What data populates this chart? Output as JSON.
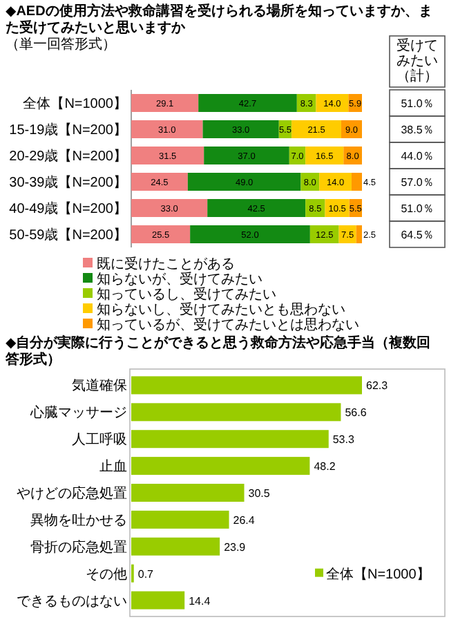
{
  "chart_data": [
    {
      "type": "bar",
      "orientation": "horizontal",
      "stacked": true,
      "title": "◆AEDの使用方法や救命講習を受けられる場所を知っていますか、また受けてみたいと思いますか",
      "subtitle": "（単一回答形式）",
      "categories": [
        "全体【N=1000】",
        "15-19歳【N=200】",
        "20-29歳【N=200】",
        "30-39歳【N=200】",
        "40-49歳【N=200】",
        "50-59歳【N=200】"
      ],
      "series": [
        {
          "name": "既に受けたことがある",
          "color": "#f08080",
          "values": [
            29.1,
            31.0,
            31.5,
            24.5,
            33.0,
            25.5
          ],
          "value_labels": [
            "29.1",
            "31.0",
            "31.5",
            "24.5",
            "33.0",
            "25.5"
          ]
        },
        {
          "name": "知らないが、受けてみたい",
          "color": "#138a13",
          "values": [
            42.7,
            33.0,
            37.0,
            49.0,
            42.5,
            52.0
          ],
          "value_labels": [
            "42.7",
            "33.0",
            "37.0",
            "49.0",
            "42.5",
            "52.0"
          ]
        },
        {
          "name": "知っているし、受けてみたい",
          "color": "#99cc00",
          "values": [
            8.3,
            5.5,
            7.0,
            8.0,
            8.5,
            12.5
          ],
          "value_labels": [
            "8.3",
            "5.5",
            "7.0",
            "8.0",
            "8.5",
            "12.5"
          ]
        },
        {
          "name": "知らないし、受けてみたいとも思わない",
          "color": "#ffcc00",
          "values": [
            14.0,
            21.5,
            16.5,
            14.0,
            10.5,
            7.5
          ],
          "value_labels": [
            "14.0",
            "21.5",
            "16.5",
            "14.0",
            "10.5",
            "7.5"
          ]
        },
        {
          "name": "知っているが、受けてみたいとは思わない",
          "color": "#ff9900",
          "values": [
            5.9,
            9.0,
            8.0,
            4.5,
            5.5,
            2.5
          ],
          "value_labels": [
            "5.9",
            "9.0",
            "8.0",
            "4.5",
            "5.5",
            "2.5"
          ]
        }
      ],
      "legend": "bottom",
      "annotations": [
        "受けてみたい（計）",
        "51.0％",
        "38.5％",
        "44.0％",
        "57.0％",
        "51.0％",
        "64.5％"
      ]
    },
    {
      "type": "bar",
      "orientation": "horizontal",
      "title": "◆自分が実際に行うことができると思う救命方法や応急手当（複数回答形式）",
      "categories": [
        "気道確保",
        "心臓マッサージ",
        "人工呼吸",
        "止血",
        "やけどの応急処置",
        "異物を吐かせる",
        "骨折の応急処置",
        "その他",
        "できるものはない"
      ],
      "series": [
        {
          "name": "全体【N=1000】",
          "color": "#99cc00",
          "values": [
            62.3,
            56.6,
            53.3,
            48.2,
            30.5,
            26.4,
            23.9,
            0.7,
            14.4
          ]
        }
      ],
      "data_labels": true,
      "legend": "bottom right"
    }
  ]
}
